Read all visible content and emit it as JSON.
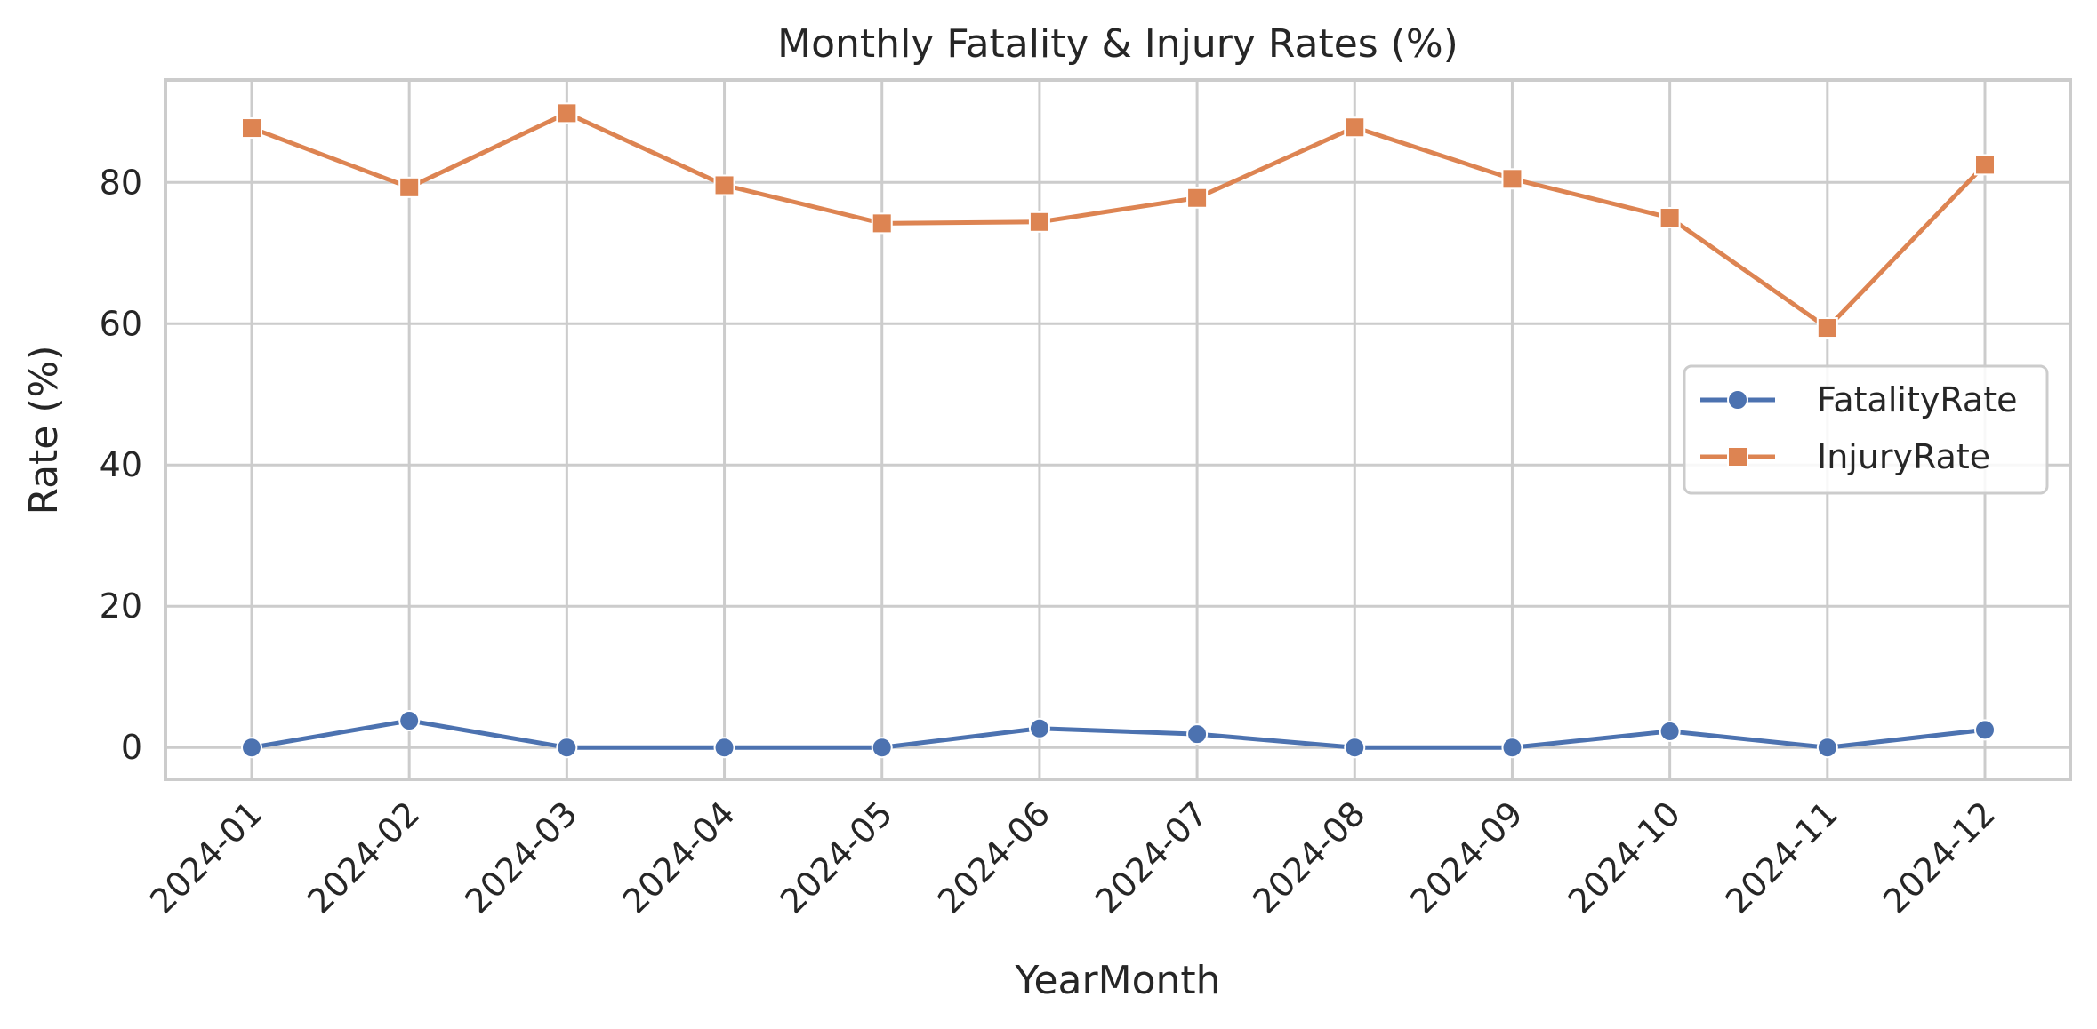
{
  "chart_data": {
    "type": "line",
    "title": "Monthly Fatality & Injury Rates (%)",
    "xlabel": "YearMonth",
    "ylabel": "Rate (%)",
    "categories": [
      "2024-01",
      "2024-02",
      "2024-03",
      "2024-04",
      "2024-05",
      "2024-06",
      "2024-07",
      "2024-08",
      "2024-09",
      "2024-10",
      "2024-11",
      "2024-12"
    ],
    "ylim": [
      -4.5,
      94.5
    ],
    "yticks": [
      0,
      20,
      40,
      60,
      80
    ],
    "grid": true,
    "legend_position": "center-right",
    "series": [
      {
        "name": "FatalityRate",
        "color": "#4c72b0",
        "marker": "circle",
        "values": [
          0,
          3.8,
          0,
          0,
          0,
          2.7,
          1.9,
          0,
          0,
          2.3,
          0,
          2.5
        ]
      },
      {
        "name": "InjuryRate",
        "color": "#dd8452",
        "marker": "square",
        "values": [
          87.7,
          79.3,
          89.8,
          79.6,
          74.2,
          74.4,
          77.8,
          87.8,
          80.5,
          75.0,
          59.4,
          82.5
        ]
      }
    ]
  }
}
